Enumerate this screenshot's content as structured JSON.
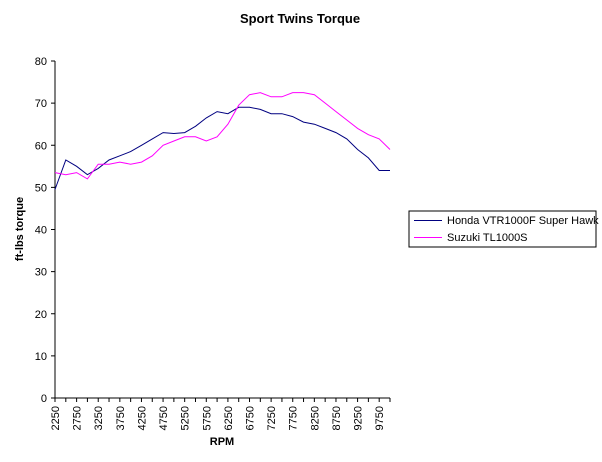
{
  "chart_data": {
    "type": "line",
    "title": "Sport Twins Torque",
    "xlabel": "RPM",
    "ylabel": "ft-lbs torque",
    "ylim": [
      0,
      80
    ],
    "yticks": [
      "0",
      "10",
      "20",
      "30",
      "40",
      "50",
      "60",
      "70",
      "80"
    ],
    "grid": false,
    "legend_position": "right",
    "x": [
      2250,
      2500,
      2750,
      3000,
      3250,
      3500,
      3750,
      4000,
      4250,
      4500,
      4750,
      5000,
      5250,
      5500,
      5750,
      6000,
      6250,
      6500,
      6750,
      7000,
      7250,
      7500,
      7750,
      8000,
      8250,
      8500,
      8750,
      9000,
      9250,
      9500,
      9750,
      10000
    ],
    "xtick_labels": [
      "2250",
      "2750",
      "3250",
      "3750",
      "4250",
      "4750",
      "5250",
      "5750",
      "6250",
      "6750",
      "7250",
      "7750",
      "8250",
      "8750",
      "9250",
      "9750"
    ],
    "series": [
      {
        "name": "Honda VTR1000F Super Hawk",
        "color": "#000080",
        "values": [
          49.5,
          56.5,
          55,
          53,
          54.5,
          56.5,
          57.5,
          58.5,
          60,
          61.5,
          63,
          62.8,
          63,
          64.5,
          66.5,
          68,
          67.5,
          69,
          69,
          68.5,
          67.5,
          67.5,
          66.8,
          65.5,
          65,
          64,
          63,
          61.5,
          59,
          57,
          54,
          54
        ]
      },
      {
        "name": "Suzuki TL1000S",
        "color": "#ff00ff",
        "values": [
          53.5,
          53,
          53.5,
          52,
          55.5,
          55.5,
          56,
          55.5,
          56,
          57.5,
          60,
          61,
          62,
          62,
          61,
          62,
          65,
          69.5,
          72,
          72.5,
          71.5,
          71.5,
          72.5,
          72.5,
          72,
          70,
          68,
          66,
          64,
          62.5,
          61.5,
          59
        ]
      }
    ]
  }
}
